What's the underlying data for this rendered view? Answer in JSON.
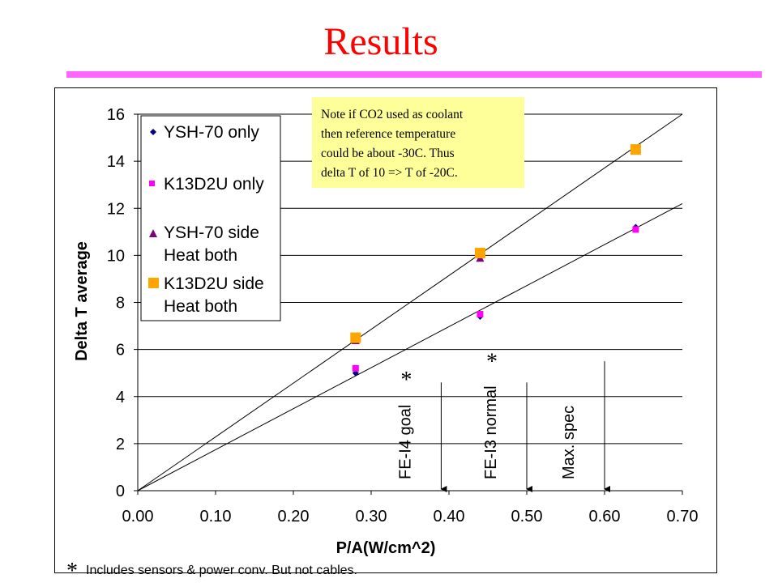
{
  "slide": {
    "title": "Results",
    "title_color": "#ff0000",
    "rule_color": "#ff66ff"
  },
  "chart_data": {
    "type": "scatter",
    "xlabel": "P/A(W/cm^2)",
    "ylabel": "Delta T average",
    "xlim": [
      0.0,
      0.7
    ],
    "ylim": [
      0,
      16
    ],
    "x_ticks": [
      "0.00",
      "0.10",
      "0.20",
      "0.30",
      "0.40",
      "0.50",
      "0.60",
      "0.70"
    ],
    "y_ticks": [
      "0",
      "2",
      "4",
      "6",
      "8",
      "10",
      "12",
      "14",
      "16"
    ],
    "grid": "horizontal",
    "legend_position": "top-left",
    "series": [
      {
        "name": "YSH-70 only",
        "marker": "diamond",
        "color": "#000080",
        "x": [
          0.28,
          0.44,
          0.64
        ],
        "y": [
          5.0,
          7.4,
          11.2
        ]
      },
      {
        "name": "K13D2U only",
        "marker": "square",
        "color": "#ff00ff",
        "x": [
          0.28,
          0.44,
          0.64
        ],
        "y": [
          5.2,
          7.5,
          11.1
        ]
      },
      {
        "name": "YSH-70 side Heat both",
        "marker": "triangle",
        "color": "#800080",
        "x": [
          0.28,
          0.44
        ],
        "y": [
          6.4,
          9.9
        ]
      },
      {
        "name": "K13D2U side Heat both",
        "marker": "square-large",
        "color": "#ffa500",
        "x": [
          0.28,
          0.44,
          0.64
        ],
        "y": [
          6.5,
          10.1,
          14.5
        ]
      }
    ],
    "trendlines": [
      {
        "x": [
          0.0,
          0.7
        ],
        "y": [
          0.0,
          16.0
        ]
      },
      {
        "x": [
          0.0,
          0.7
        ],
        "y": [
          0.0,
          12.2
        ]
      }
    ],
    "reference_markers": [
      {
        "label": "FE-I4 goal",
        "starred": true,
        "x": 0.39,
        "y_top": 4.6
      },
      {
        "label": "FE-I3 normal",
        "starred": true,
        "x": 0.5,
        "y_top": 4.6
      },
      {
        "label": "Max. spec",
        "starred": false,
        "x": 0.6,
        "y_top": 5.5
      }
    ],
    "note": {
      "lines": [
        "Note if CO2 used as coolant",
        "then reference temperature",
        "could be about -30C. Thus",
        "delta T of 10 => T of -20C."
      ],
      "background": "#ffff99"
    },
    "star_symbol": "*",
    "footnote": "Includes sensors & power conv. But not cables."
  }
}
